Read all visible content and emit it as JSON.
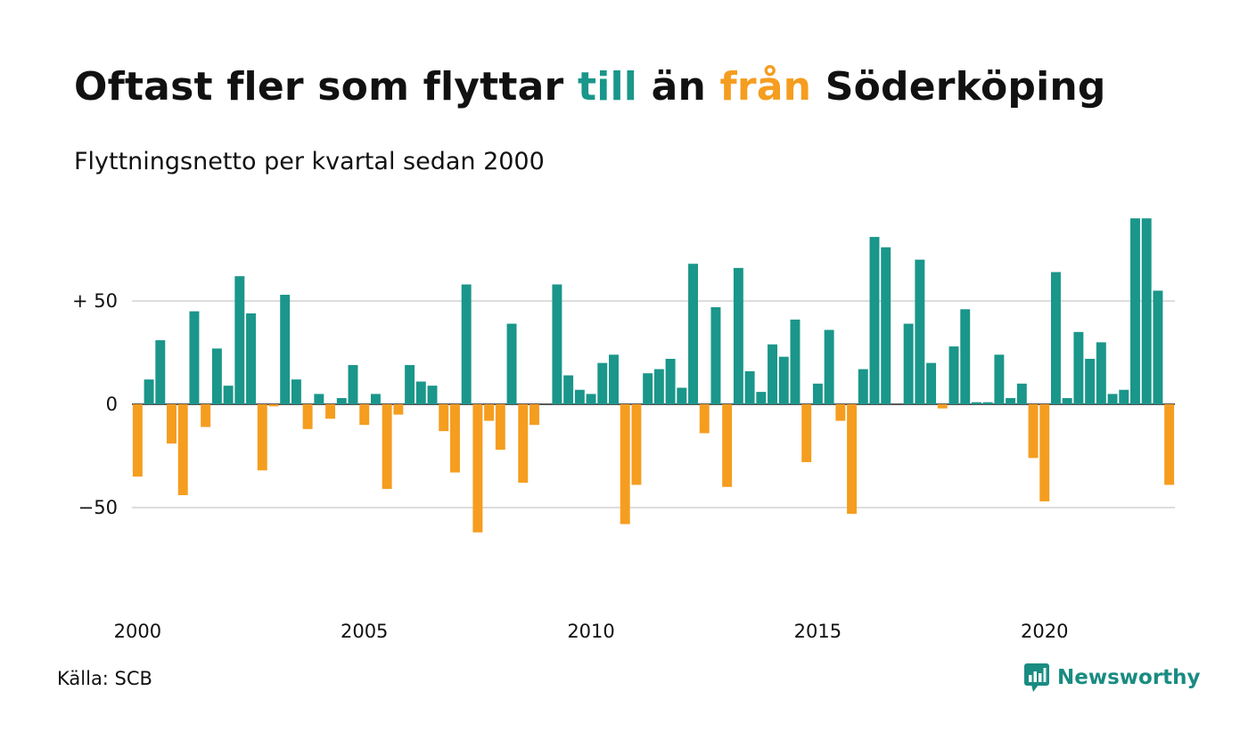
{
  "title": {
    "part1": "Oftast fler som flyttar ",
    "word_to": "till",
    "part2": " än ",
    "word_from": "från",
    "part3": " Söderköping"
  },
  "subtitle": "Flyttningsnetto per kvartal sedan 2000",
  "source": "Källa: SCB",
  "brand": "Newsworthy",
  "colors": {
    "positive": "#1a968a",
    "negative": "#f59d1f",
    "grid": "#dddddd",
    "text": "#111111"
  },
  "chart_data": {
    "type": "bar",
    "x_start": "2000 Q1",
    "y_ticks": [
      {
        "value": 50,
        "label": "+ 50"
      },
      {
        "value": 0,
        "label": "0"
      },
      {
        "value": -50,
        "label": "−50"
      }
    ],
    "x_ticks": [
      "2000",
      "2005",
      "2010",
      "2015",
      "2020"
    ],
    "ylim": [
      -92,
      92
    ],
    "grid": true,
    "values": [
      -35,
      12,
      31,
      -19,
      -44,
      45,
      -11,
      27,
      9,
      62,
      44,
      -32,
      -1,
      53,
      12,
      -12,
      5,
      -7,
      3,
      19,
      -10,
      5,
      -41,
      -5,
      19,
      11,
      9,
      -13,
      -33,
      58,
      -62,
      -8,
      -22,
      39,
      -38,
      -10,
      0,
      58,
      14,
      7,
      5,
      20,
      24,
      -58,
      -39,
      15,
      17,
      22,
      8,
      68,
      -14,
      47,
      -40,
      66,
      16,
      6,
      29,
      23,
      41,
      -28,
      10,
      36,
      -8,
      -53,
      17,
      81,
      76,
      0,
      39,
      70,
      20,
      -2,
      28,
      46,
      1,
      1,
      24,
      3,
      10,
      -26,
      -47,
      64,
      3,
      35,
      22,
      30,
      5,
      7,
      90,
      90,
      55,
      -39
    ]
  }
}
